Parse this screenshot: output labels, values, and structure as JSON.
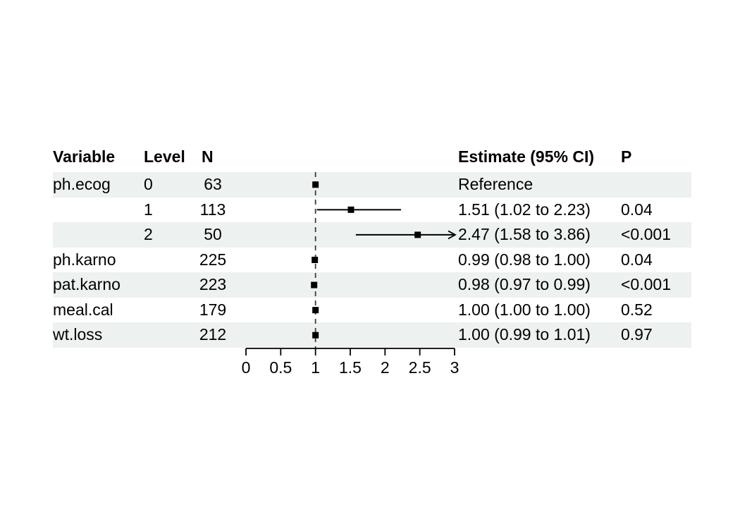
{
  "page": {
    "background": "#ffffff"
  },
  "table": {
    "headers": {
      "variable": "Variable",
      "level": "Level",
      "n": "N",
      "estimate": "Estimate (95% CI)",
      "p": "P"
    }
  },
  "chart_data": {
    "type": "scatter",
    "variant": "forest-plot",
    "title": "",
    "xlabel": "",
    "xlim": [
      0,
      3
    ],
    "x_tick_values": [
      0,
      0.5,
      1,
      1.5,
      2,
      2.5,
      3
    ],
    "x_tick_labels": [
      "0",
      "0.5",
      "1",
      "1.5",
      "2",
      "2.5",
      "3"
    ],
    "reference_line_x": 1,
    "legend": "none",
    "grid": "off",
    "colors": {
      "stripe": "#edf1f0",
      "marker": "#000000",
      "axis": "#000000",
      "reference_line": "#3c3c3c",
      "text": "#000000"
    },
    "rows": [
      {
        "variable": "ph.ecog",
        "level": "0",
        "n": "63",
        "estimate_label": "Reference",
        "p": "",
        "est": 1.0,
        "lo": null,
        "hi": null,
        "arrow": false,
        "shaded": true
      },
      {
        "variable": "",
        "level": "1",
        "n": "113",
        "estimate_label": "1.51 (1.02 to 2.23)",
        "p": "0.04",
        "est": 1.51,
        "lo": 1.02,
        "hi": 2.23,
        "arrow": false,
        "shaded": false
      },
      {
        "variable": "",
        "level": "2",
        "n": "50",
        "estimate_label": "2.47 (1.58 to 3.86)",
        "p": "<0.001",
        "est": 2.47,
        "lo": 1.58,
        "hi": 3.86,
        "arrow": true,
        "shaded": true
      },
      {
        "variable": "ph.karno",
        "level": "",
        "n": "225",
        "estimate_label": "0.99 (0.98 to 1.00)",
        "p": "0.04",
        "est": 0.99,
        "lo": 0.98,
        "hi": 1.0,
        "arrow": false,
        "shaded": false
      },
      {
        "variable": "pat.karno",
        "level": "",
        "n": "223",
        "estimate_label": "0.98 (0.97 to 0.99)",
        "p": "<0.001",
        "est": 0.98,
        "lo": 0.97,
        "hi": 0.99,
        "arrow": false,
        "shaded": true
      },
      {
        "variable": "meal.cal",
        "level": "",
        "n": "179",
        "estimate_label": "1.00 (1.00 to 1.00)",
        "p": "0.52",
        "est": 1.0,
        "lo": 1.0,
        "hi": 1.0,
        "arrow": false,
        "shaded": false
      },
      {
        "variable": "wt.loss",
        "level": "",
        "n": "212",
        "estimate_label": "1.00 (0.99 to 1.01)",
        "p": "0.97",
        "est": 1.0,
        "lo": 0.99,
        "hi": 1.01,
        "arrow": false,
        "shaded": true
      }
    ]
  }
}
